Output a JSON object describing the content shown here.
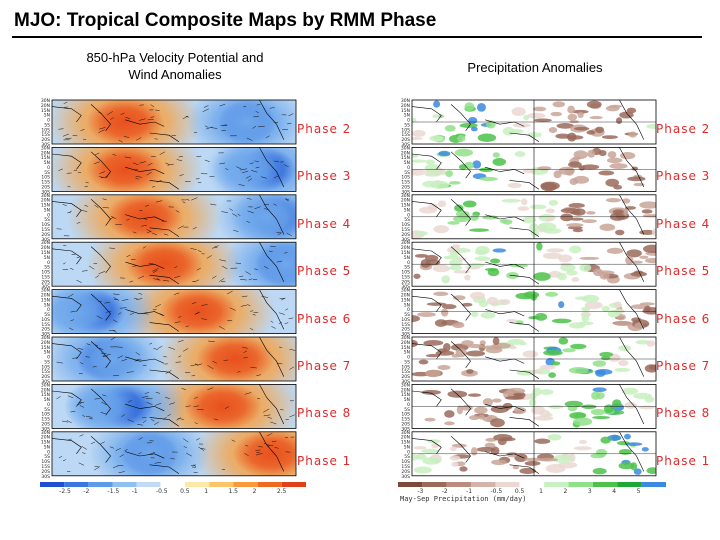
{
  "title": "MJO: Tropical Composite Maps by RMM Phase",
  "left_panel": {
    "title_line1": "850-hPa Velocity Potential and",
    "title_line2": "Wind Anomalies",
    "colorbar_ticks": [
      "-2.5",
      "-2",
      "-1.5",
      "-1",
      "-0.5",
      "0.5",
      "1",
      "1.5",
      "2",
      "2.5"
    ],
    "colorbar_colors": [
      "#1f4fd0",
      "#3a78e0",
      "#5d9be8",
      "#8fc0f0",
      "#c2dcf6",
      "#ffffff",
      "#fde8a8",
      "#fcc56a",
      "#f89a3c",
      "#ef6a22",
      "#e0401a"
    ]
  },
  "right_panel": {
    "title": "Precipitation Anomalies",
    "colorbar_caption": "May-Sep Precipitation (mm/day)",
    "colorbar_ticks": [
      "-3",
      "-2",
      "-1",
      "-0.5",
      "0.5",
      "1",
      "2",
      "3",
      "4",
      "5"
    ],
    "colorbar_colors": [
      "#7a4a3a",
      "#9a6a5a",
      "#b88d80",
      "#d4b4aa",
      "#ebd8d2",
      "#ffffff",
      "#c8f0c0",
      "#90e08a",
      "#4cc24a",
      "#1fa838",
      "#3a8ae0"
    ]
  },
  "phases": [
    {
      "label": "Phase 2",
      "phase": 2
    },
    {
      "label": "Phase 3",
      "phase": 3
    },
    {
      "label": "Phase 4",
      "phase": 4
    },
    {
      "label": "Phase 5",
      "phase": 5
    },
    {
      "label": "Phase 6",
      "phase": 6
    },
    {
      "label": "Phase 7",
      "phase": 7
    },
    {
      "label": "Phase 8",
      "phase": 8
    },
    {
      "label": "Phase 1",
      "phase": 1
    }
  ],
  "lat_labels": [
    "30N",
    "20N",
    "15N",
    "5N",
    "0",
    "5S",
    "10S",
    "15S",
    "20S",
    "30S"
  ]
}
